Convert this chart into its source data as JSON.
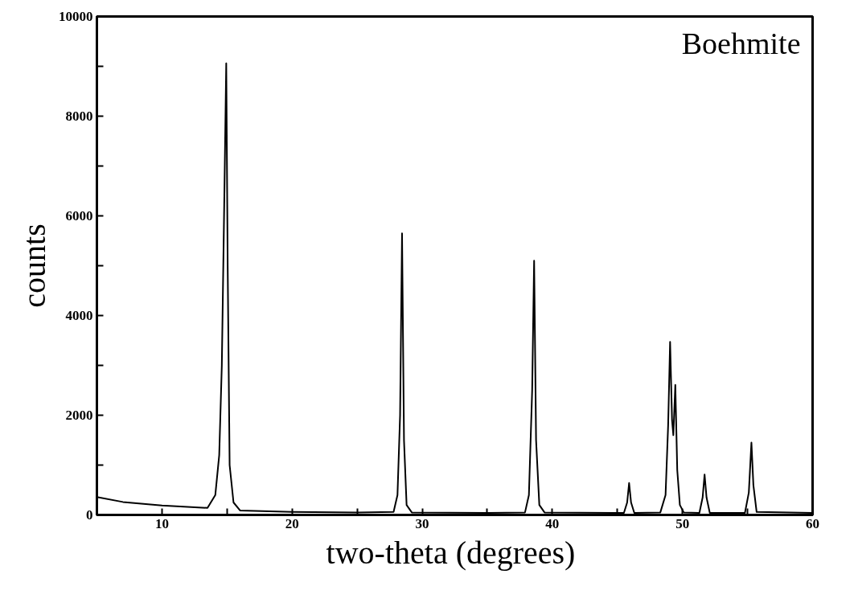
{
  "chart_data": {
    "type": "line",
    "xlabel": "two-theta  (degrees)",
    "ylabel": "counts",
    "annotations": [
      "Boehmite"
    ],
    "xlim": [
      5,
      60
    ],
    "ylim": [
      0,
      10000
    ],
    "xticks": [
      10,
      {
        "value": 15,
        "label": null
      },
      20,
      {
        "value": 25,
        "label": null
      },
      30,
      {
        "value": 35,
        "label": null
      },
      40,
      {
        "value": 45,
        "label": null
      },
      50,
      {
        "value": 55,
        "label": null
      },
      60
    ],
    "yticks": [
      0,
      {
        "value": 1000,
        "label": null
      },
      2000,
      {
        "value": 3000,
        "label": null
      },
      4000,
      {
        "value": 5000,
        "label": null
      },
      6000,
      {
        "value": 7000,
        "label": null
      },
      8000,
      {
        "value": 9000,
        "label": null
      },
      10000
    ],
    "grid": false,
    "marker": "none",
    "line_style": "solid",
    "series": [
      {
        "color": "#000000",
        "x": [
          5,
          7,
          10,
          13.5,
          14.1,
          14.4,
          14.6,
          14.8,
          14.94,
          15.05,
          15.2,
          15.5,
          16,
          20,
          25,
          27.8,
          28.1,
          28.3,
          28.45,
          28.6,
          28.8,
          29.2,
          35,
          37.9,
          38.2,
          38.45,
          38.6,
          38.75,
          39,
          39.4,
          45.5,
          45.75,
          45.9,
          46.05,
          46.3,
          48.3,
          48.7,
          48.9,
          49.05,
          49.2,
          49.3,
          49.45,
          49.6,
          49.8,
          50.1,
          51.3,
          51.55,
          51.7,
          51.85,
          52.1,
          54.8,
          55.1,
          55.3,
          55.45,
          55.7,
          60
        ],
        "values": [
          360,
          260,
          190,
          140,
          400,
          1200,
          3000,
          6500,
          9060,
          5000,
          1000,
          250,
          90,
          60,
          50,
          60,
          400,
          2000,
          5650,
          1500,
          200,
          50,
          40,
          50,
          400,
          2500,
          5100,
          1500,
          200,
          50,
          40,
          250,
          640,
          250,
          40,
          50,
          400,
          1800,
          3470,
          1900,
          1600,
          2610,
          900,
          200,
          50,
          40,
          350,
          810,
          350,
          40,
          40,
          450,
          1450,
          600,
          60,
          40
        ]
      }
    ]
  }
}
